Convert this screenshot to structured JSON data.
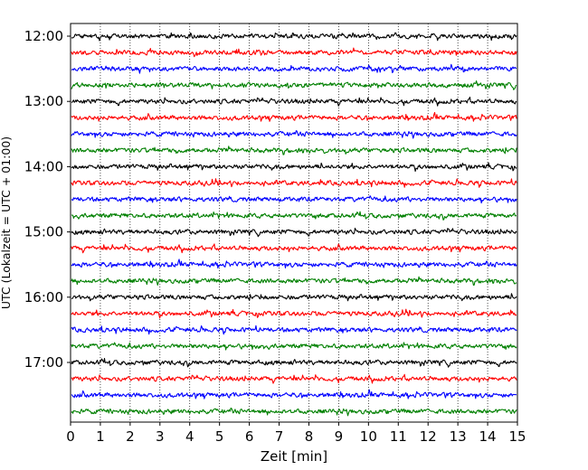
{
  "chart_data": {
    "type": "line",
    "chart_kind": "seismogram helicorder (stacked traces)",
    "xlabel": "Zeit  [min]",
    "ylabel": "UTC (Lokalzeit = UTC + 01:00)",
    "xlim": [
      0,
      15
    ],
    "x_ticks": [
      "0",
      "1",
      "2",
      "3",
      "4",
      "5",
      "6",
      "7",
      "8",
      "9",
      "10",
      "11",
      "12",
      "13",
      "14",
      "15"
    ],
    "y_ticks": [
      "12:00",
      "13:00",
      "14:00",
      "15:00",
      "16:00",
      "17:00"
    ],
    "grid": "vertical dotted lines at each minute",
    "trace_interval_minutes": 15,
    "trace_colors": [
      "#000000",
      "#ff0000",
      "#0000ff",
      "#008000"
    ],
    "traces": [
      {
        "start": "12:00",
        "color": "#000000"
      },
      {
        "start": "12:15",
        "color": "#ff0000"
      },
      {
        "start": "12:30",
        "color": "#0000ff"
      },
      {
        "start": "12:45",
        "color": "#008000"
      },
      {
        "start": "13:00",
        "color": "#000000"
      },
      {
        "start": "13:15",
        "color": "#ff0000"
      },
      {
        "start": "13:30",
        "color": "#0000ff"
      },
      {
        "start": "13:45",
        "color": "#008000"
      },
      {
        "start": "14:00",
        "color": "#000000"
      },
      {
        "start": "14:15",
        "color": "#ff0000"
      },
      {
        "start": "14:30",
        "color": "#0000ff"
      },
      {
        "start": "14:45",
        "color": "#008000"
      },
      {
        "start": "15:00",
        "color": "#000000"
      },
      {
        "start": "15:15",
        "color": "#ff0000"
      },
      {
        "start": "15:30",
        "color": "#0000ff"
      },
      {
        "start": "15:45",
        "color": "#008000"
      },
      {
        "start": "16:00",
        "color": "#000000"
      },
      {
        "start": "16:15",
        "color": "#ff0000"
      },
      {
        "start": "16:30",
        "color": "#0000ff"
      },
      {
        "start": "16:45",
        "color": "#008000"
      },
      {
        "start": "17:00",
        "color": "#000000"
      },
      {
        "start": "17:15",
        "color": "#ff0000"
      },
      {
        "start": "17:30",
        "color": "#0000ff"
      },
      {
        "start": "17:45",
        "color": "#008000"
      }
    ]
  }
}
